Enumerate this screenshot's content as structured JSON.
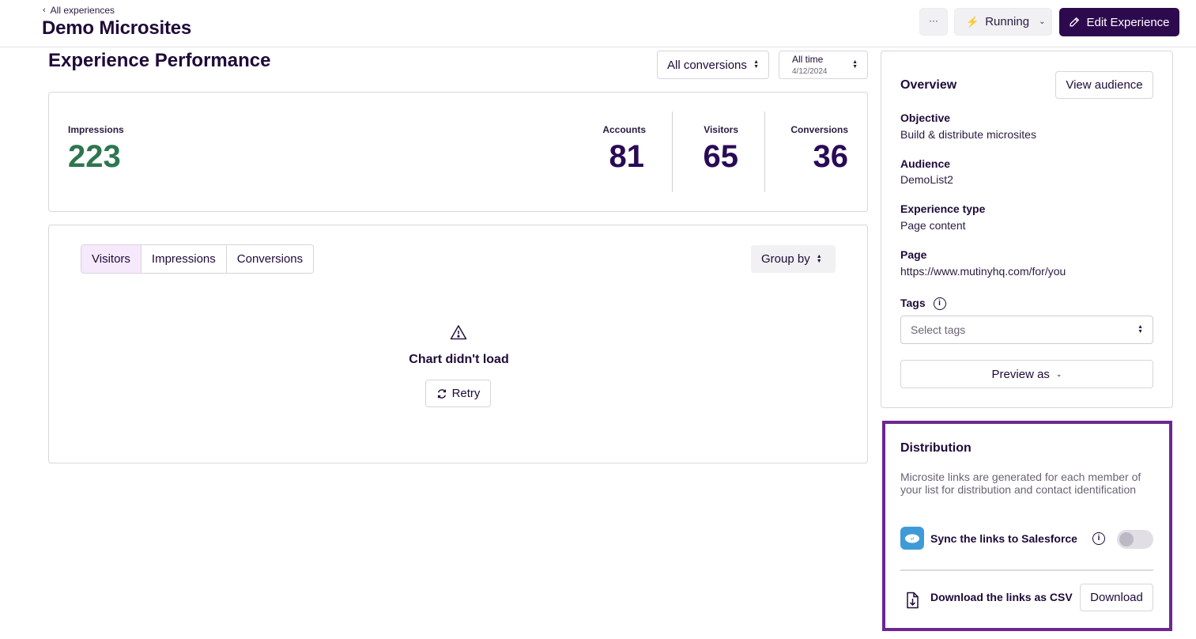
{
  "header": {
    "back_label": "All experiences",
    "title": "Demo Microsites",
    "more_label": "···",
    "status_label": "Running",
    "edit_label": "Edit Experience"
  },
  "performance": {
    "title": "Experience Performance",
    "conversion_filter": "All conversions",
    "time_filter": {
      "label": "All time",
      "date": "4/12/2024"
    }
  },
  "stats": {
    "impressions": {
      "label": "Impressions",
      "value": "223"
    },
    "accounts": {
      "label": "Accounts",
      "value": "81"
    },
    "visitors": {
      "label": "Visitors",
      "value": "65"
    },
    "conversions": {
      "label": "Conversions",
      "value": "36"
    }
  },
  "chart_panel": {
    "tabs": [
      {
        "label": "Visitors",
        "active": true
      },
      {
        "label": "Impressions",
        "active": false
      },
      {
        "label": "Conversions",
        "active": false
      }
    ],
    "group_by_label": "Group by",
    "error_message": "Chart didn't load",
    "retry_label": "Retry"
  },
  "overview": {
    "title": "Overview",
    "view_audience_label": "View audience",
    "objective": {
      "label": "Objective",
      "value": "Build & distribute microsites"
    },
    "audience": {
      "label": "Audience",
      "value": "DemoList2"
    },
    "experience_type": {
      "label": "Experience type",
      "value": "Page content"
    },
    "page": {
      "label": "Page",
      "value": "https://www.mutinyhq.com/for/you"
    },
    "tags": {
      "label": "Tags",
      "placeholder": "Select tags"
    },
    "preview_label": "Preview as"
  },
  "distribution": {
    "title": "Distribution",
    "description": "Microsite links are generated for each member of your list for distribution and contact identification",
    "sync_label": "Sync the links to Salesforce",
    "sync_enabled": false,
    "csv_label": "Download the links as CSV",
    "download_label": "Download"
  },
  "colors": {
    "brand_dark": "#2d0a4e",
    "impressions_green": "#2e7650",
    "highlight_border": "#6d2692",
    "active_tab_bg": "#f6e9fb",
    "salesforce_blue": "#3f9bd8"
  }
}
